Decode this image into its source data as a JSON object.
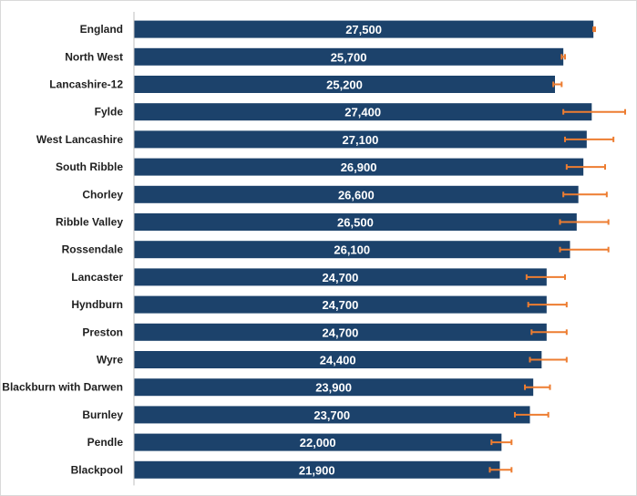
{
  "chart_data": {
    "type": "bar",
    "orientation": "horizontal",
    "title": "",
    "xlabel": "",
    "ylabel": "",
    "xlim": [
      0,
      30000
    ],
    "grid": false,
    "legend": "none",
    "colors": {
      "bar": "#1c426b",
      "error_bar": "#ed7d31",
      "axis": "#bfbfbf",
      "label": "#1f1f1f",
      "value_label": "#ffffff"
    },
    "categories": [
      "England",
      "North West",
      "Lancashire-12",
      "Fylde",
      "West Lancashire",
      "South Ribble",
      "Chorley",
      "Ribble Valley",
      "Rossendale",
      "Lancaster",
      "Hyndburn",
      "Preston",
      "Wyre",
      "Blackburn with Darwen",
      "Burnley",
      "Pendle",
      "Blackpool"
    ],
    "values": [
      27500,
      25700,
      25200,
      27400,
      27100,
      26900,
      26600,
      26500,
      26100,
      24700,
      24700,
      24700,
      24400,
      23900,
      23700,
      22000,
      21900
    ],
    "value_labels": [
      "27,500",
      "25,700",
      "25,200",
      "27,400",
      "27,100",
      "26,900",
      "26,600",
      "26,500",
      "26,100",
      "24,700",
      "24,700",
      "24,700",
      "24,400",
      "23,900",
      "23,700",
      "22,000",
      "21,900"
    ],
    "error_low": [
      27500,
      25600,
      25100,
      25700,
      25800,
      25900,
      25700,
      25500,
      25500,
      23500,
      23600,
      23800,
      23700,
      23400,
      22800,
      21400,
      21300
    ],
    "error_high": [
      27600,
      25800,
      25600,
      29400,
      28700,
      28200,
      28300,
      28400,
      28400,
      25800,
      25900,
      25900,
      25900,
      24900,
      24800,
      22600,
      22600
    ]
  }
}
